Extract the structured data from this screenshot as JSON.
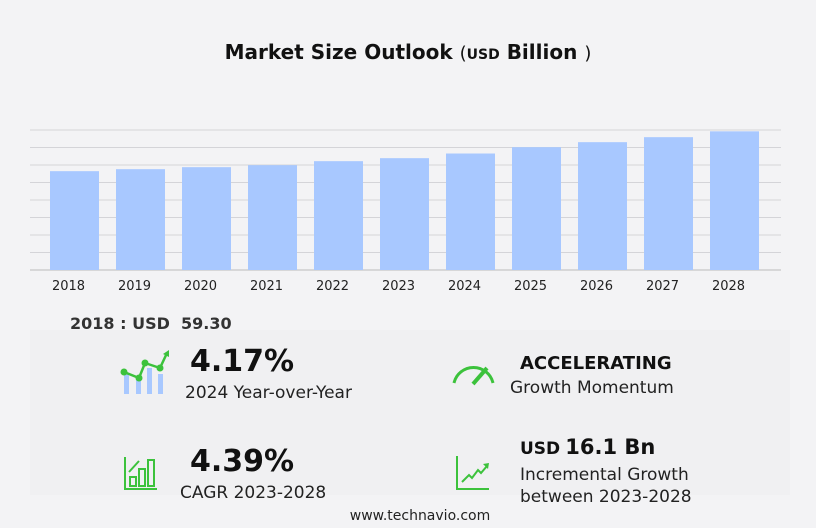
{
  "title": {
    "main": "Market Size Outlook",
    "unit": "USD",
    "unit_word": "Billion",
    "open_paren": "(",
    "close_paren": ")"
  },
  "chart_data": {
    "type": "bar",
    "title": "Market Size Outlook (USD Billion)",
    "categories": [
      "2018",
      "2019",
      "2020",
      "2021",
      "2022",
      "2023",
      "2024",
      "2025",
      "2026",
      "2027",
      "2028"
    ],
    "values": [
      59.3,
      60.5,
      61.7,
      62.9,
      65.3,
      67.1,
      69.9,
      73.7,
      76.7,
      79.7,
      83.2
    ],
    "ylim": [
      0,
      84
    ],
    "grid": true,
    "bar_color": "#a8c8ff"
  },
  "base_label": "2018 : USD  59.30",
  "stats": {
    "yoy": {
      "value": "4.17%",
      "label": "2024 Year-over-Year"
    },
    "momentum": {
      "value": "ACCELERATING",
      "label": "Growth Momentum"
    },
    "cagr": {
      "value": "4.39%",
      "label": "CAGR 2023-2028"
    },
    "incremental": {
      "unit": "USD",
      "value": "16.1 Bn",
      "label1": "Incremental Growth",
      "label2": "between 2023-2028"
    }
  },
  "footer": "www.technavio.com",
  "colors": {
    "accent": "#3cc23c",
    "bar": "#a8c8ff"
  }
}
